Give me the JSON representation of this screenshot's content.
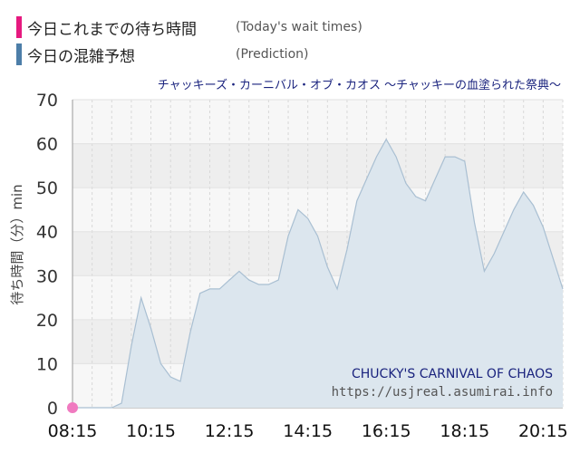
{
  "legend": {
    "today": {
      "label": "今日これまでの待ち時間",
      "sub": "(Today's wait times)",
      "color": "#e6197f"
    },
    "prediction": {
      "label": "今日の混雑予想",
      "sub": "(Prediction)",
      "color": "#4d7ea8"
    }
  },
  "attraction_title": "チャッキーズ・カーニバル・オブ・カオス ～チャッキーの血塗られた祭典～",
  "watermark": {
    "name": "CHUCKY'S CARNIVAL OF CHAOS",
    "url": "https://usjreal.asumirai.info"
  },
  "colors": {
    "prediction_fill": "#dce6ee",
    "prediction_line": "#a9bfd2",
    "today_marker": "#f07ac0",
    "title": "#1a237e"
  },
  "chart_data": {
    "type": "area",
    "title": "チャッキーズ・カーニバル・オブ・カオス ～チャッキーの血塗られた祭典～",
    "ylabel": "待ち時間（分）min",
    "xlabel": "",
    "ylim": [
      0,
      70
    ],
    "xlim": [
      "08:15",
      "20:45"
    ],
    "x_ticks": [
      "08:15",
      "10:15",
      "12:15",
      "14:15",
      "16:15",
      "18:15",
      "20:15"
    ],
    "y_ticks": [
      0,
      10,
      20,
      30,
      40,
      50,
      60,
      70
    ],
    "grid": true,
    "series": [
      {
        "name": "(Prediction)",
        "x": [
          "08:15",
          "08:45",
          "09:15",
          "09:30",
          "09:45",
          "10:00",
          "10:15",
          "10:30",
          "10:45",
          "11:00",
          "11:15",
          "11:30",
          "11:45",
          "12:00",
          "12:15",
          "12:30",
          "12:45",
          "13:00",
          "13:15",
          "13:30",
          "13:45",
          "14:00",
          "14:15",
          "14:30",
          "14:45",
          "15:00",
          "15:15",
          "15:30",
          "15:45",
          "16:00",
          "16:15",
          "16:30",
          "16:45",
          "17:00",
          "17:15",
          "17:30",
          "17:45",
          "18:00",
          "18:15",
          "18:30",
          "18:45",
          "19:00",
          "19:15",
          "19:30",
          "19:45",
          "20:00",
          "20:15",
          "20:30",
          "20:45"
        ],
        "values": [
          0,
          0,
          0,
          1,
          14,
          25,
          18,
          10,
          7,
          6,
          17,
          26,
          27,
          27,
          29,
          31,
          29,
          28,
          28,
          29,
          39,
          45,
          43,
          39,
          32,
          27,
          36,
          47,
          52,
          57,
          61,
          57,
          51,
          48,
          47,
          52,
          57,
          57,
          56,
          42,
          31,
          35,
          40,
          45,
          49,
          46,
          41,
          34,
          27
        ]
      },
      {
        "name": "(Today's wait times)",
        "x": [
          "08:15"
        ],
        "values": [
          0
        ]
      }
    ]
  }
}
